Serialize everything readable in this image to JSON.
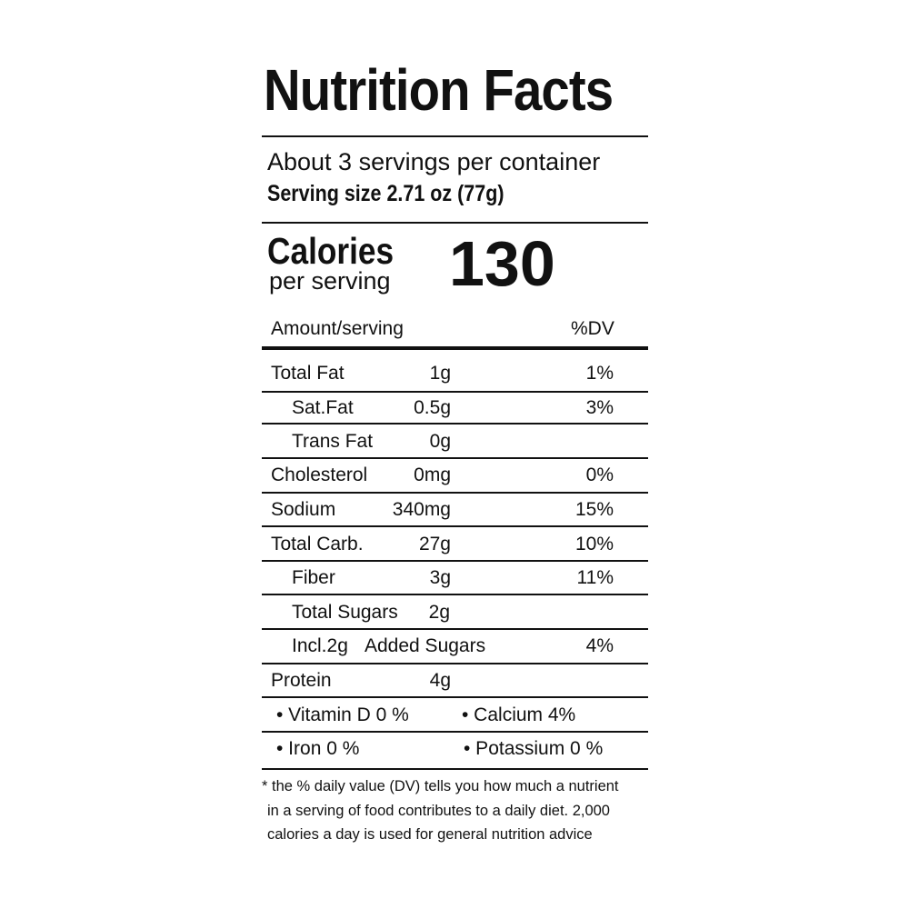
{
  "title": "Nutrition Facts",
  "servings_per_container": "About 3 servings per container",
  "serving_size": "Serving size 2.71 oz (77g)",
  "calories": {
    "label": "Calories",
    "sublabel": "per serving",
    "value": "130"
  },
  "table_header": {
    "amount": "Amount/serving",
    "dv": "%DV"
  },
  "nutrients": [
    {
      "name": "Total Fat",
      "amount": "1g",
      "dv": "1%"
    },
    {
      "name": "Sat.Fat",
      "amount": "0.5g",
      "dv": "3%"
    },
    {
      "name": "Trans Fat",
      "amount": "0g",
      "dv": ""
    },
    {
      "name": "Cholesterol",
      "amount": "0mg",
      "dv": "0%"
    },
    {
      "name": "Sodium",
      "amount": "340mg",
      "dv": "15%"
    },
    {
      "name": "Total Carb.",
      "amount": "27g",
      "dv": "10%"
    },
    {
      "name": "Fiber",
      "amount": "3g",
      "dv": "11%"
    },
    {
      "name": "Total Sugars",
      "amount": "2g",
      "dv": ""
    },
    {
      "name": "Added Sugars",
      "amount": "Incl.2g",
      "dv": "4%"
    },
    {
      "name": "Protein",
      "amount": "4g",
      "dv": ""
    }
  ],
  "vitamins": [
    {
      "left": "• Vitamin D 0 %",
      "right": "• Calcium 4%"
    },
    {
      "left": "• Iron 0 %",
      "right": "• Potassium 0 %"
    }
  ],
  "footnote": {
    "line1": "* the % daily value (DV) tells you how much a nutrient",
    "line2": "in a serving of food contributes to a daily diet. 2,000",
    "line3": "calories a day is used for general nutrition advice"
  }
}
